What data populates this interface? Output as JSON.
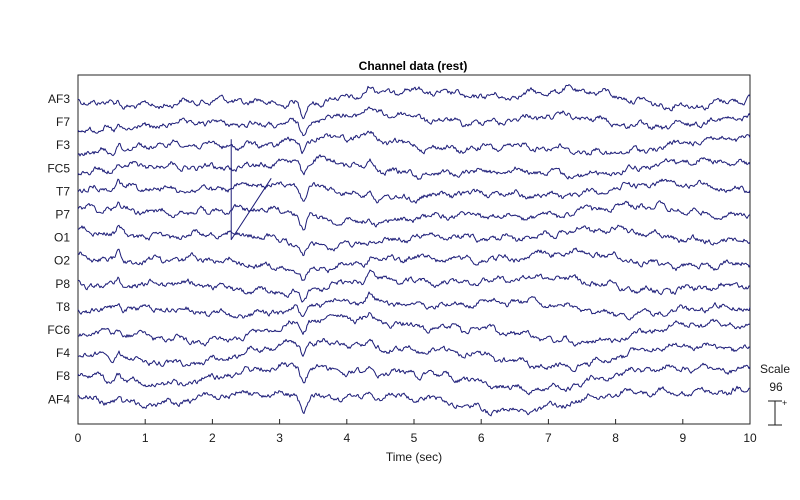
{
  "chart_data": {
    "type": "line",
    "title": "Channel data (rest)",
    "xlabel": "Time (sec)",
    "xlim": [
      0,
      10
    ],
    "x_ticks": [
      0,
      1,
      2,
      3,
      4,
      5,
      6,
      7,
      8,
      9,
      10
    ],
    "channels": [
      "AF3",
      "F7",
      "F3",
      "FC5",
      "T7",
      "P7",
      "O1",
      "O2",
      "P8",
      "T8",
      "FC6",
      "F4",
      "F8",
      "AF4"
    ],
    "scale": {
      "label": "Scale",
      "value": "96"
    },
    "line_color": "#1c1c78",
    "grid": false
  }
}
